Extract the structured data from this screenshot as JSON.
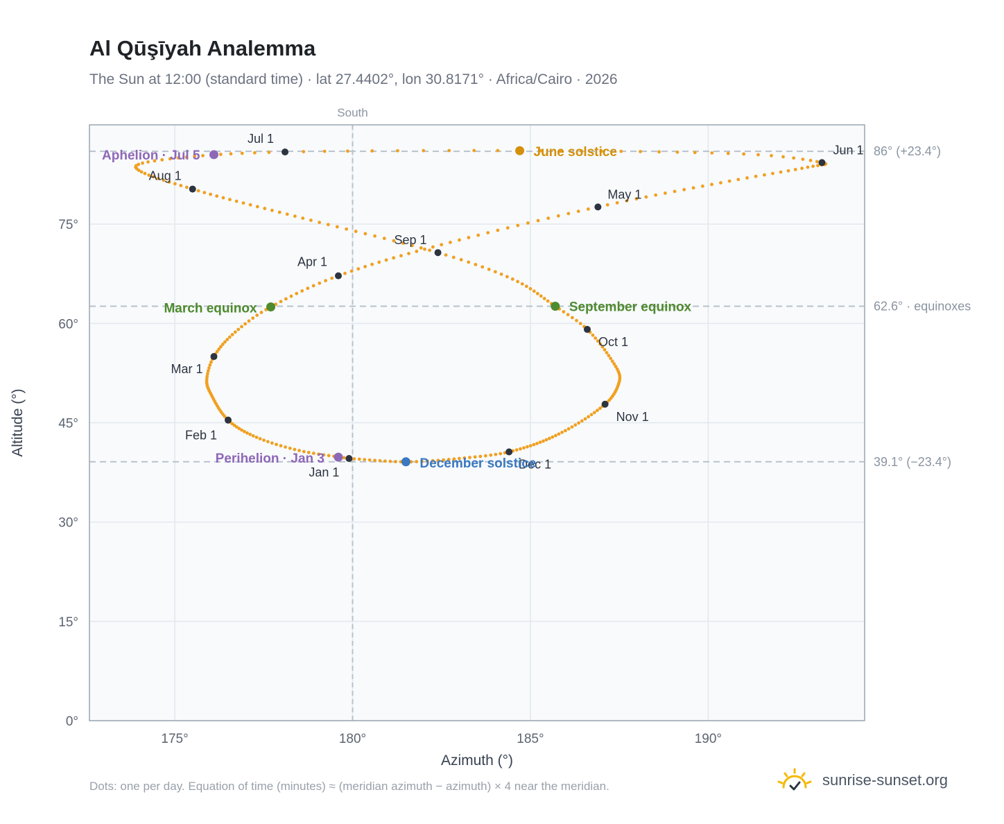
{
  "header": {
    "title": "Al Qūşīyah Analemma",
    "subtitle": "The Sun at 12:00 (standard time) · lat 27.4402°, lon 30.8171° · Africa/Cairo · 2026"
  },
  "footer": {
    "note": "Dots: one per day. Equation of time (minutes) ≈ (meridian azimuth − azimuth) × 4 near the meridian.",
    "brand": "sunrise-sunset.org"
  },
  "colors": {
    "path": "#f0a020",
    "month_marker": "#2d3440",
    "june_solstice": "#d4900a",
    "december_solstice": "#3a78c0",
    "equinox": "#4e8a2e",
    "apsis": "#8e68b8",
    "plot_bg": "#f8fafc",
    "grid": "#e3e8ee",
    "ref_line": "#b8c2cc"
  },
  "chart_data": {
    "type": "scatter",
    "xlabel": "Azimuth (°)",
    "ylabel": "Altitude (°)",
    "xlim": [
      172.6,
      194.4
    ],
    "ylim": [
      0,
      90
    ],
    "x_ticks": [
      175,
      180,
      185,
      190
    ],
    "x_tick_labels": [
      "175°",
      "180°",
      "185°",
      "190°"
    ],
    "y_ticks": [
      0,
      15,
      30,
      45,
      60,
      75
    ],
    "y_tick_labels": [
      "0°",
      "15°",
      "30°",
      "45°",
      "60°",
      "75°"
    ],
    "grid": true,
    "meridian": {
      "azimuth": 180,
      "label": "South"
    },
    "reference_lines": [
      {
        "altitude": 86.0,
        "label": "86° (+23.4°)"
      },
      {
        "altitude": 62.6,
        "label": "62.6° · equinoxes"
      },
      {
        "altitude": 39.1,
        "label": "39.1° (−23.4°)"
      }
    ],
    "month_markers": [
      {
        "label": "Jan 1",
        "az": 179.9,
        "alt": 39.6
      },
      {
        "label": "Feb 1",
        "az": 176.5,
        "alt": 45.4
      },
      {
        "label": "Mar 1",
        "az": 176.1,
        "alt": 55.0
      },
      {
        "label": "Apr 1",
        "az": 179.6,
        "alt": 67.2
      },
      {
        "label": "May 1",
        "az": 186.9,
        "alt": 77.6
      },
      {
        "label": "Jun 1",
        "az": 193.2,
        "alt": 84.3
      },
      {
        "label": "Jul 1",
        "az": 178.1,
        "alt": 85.9
      },
      {
        "label": "Aug 1",
        "az": 175.5,
        "alt": 80.3
      },
      {
        "label": "Sep 1",
        "az": 182.4,
        "alt": 70.7
      },
      {
        "label": "Oct 1",
        "az": 186.6,
        "alt": 59.1
      },
      {
        "label": "Nov 1",
        "az": 187.1,
        "alt": 47.8
      },
      {
        "label": "Dec 1",
        "az": 184.4,
        "alt": 40.6
      }
    ],
    "events": [
      {
        "label": "June solstice",
        "az": 184.7,
        "alt": 86.1,
        "color_key": "june_solstice"
      },
      {
        "label": "December solstice",
        "az": 181.5,
        "alt": 39.1,
        "color_key": "december_solstice"
      },
      {
        "label": "March equinox",
        "az": 177.7,
        "alt": 62.5,
        "color_key": "equinox"
      },
      {
        "label": "September equinox",
        "az": 185.7,
        "alt": 62.6,
        "color_key": "equinox"
      },
      {
        "label": "Perihelion · Jan 3",
        "az": 179.6,
        "alt": 39.8,
        "color_key": "apsis"
      },
      {
        "label": "Aphelion · Jul 5",
        "az": 176.1,
        "alt": 85.5,
        "color_key": "apsis"
      }
    ],
    "path_anchors": [
      {
        "doy": 1,
        "az": 179.9,
        "alt": 39.6
      },
      {
        "doy": 11,
        "az": 178.5,
        "alt": 40.8
      },
      {
        "doy": 21,
        "az": 177.3,
        "alt": 42.8
      },
      {
        "doy": 32,
        "az": 176.5,
        "alt": 45.4
      },
      {
        "doy": 45,
        "az": 176.0,
        "alt": 49.5
      },
      {
        "doy": 52,
        "az": 175.9,
        "alt": 51.6
      },
      {
        "doy": 60,
        "az": 176.1,
        "alt": 55.0
      },
      {
        "doy": 70,
        "az": 176.7,
        "alt": 58.7
      },
      {
        "doy": 79,
        "az": 177.7,
        "alt": 62.5
      },
      {
        "doy": 91,
        "az": 179.6,
        "alt": 67.2
      },
      {
        "doy": 105,
        "az": 182.5,
        "alt": 71.9
      },
      {
        "doy": 121,
        "az": 186.9,
        "alt": 77.6
      },
      {
        "doy": 135,
        "az": 190.6,
        "alt": 81.5
      },
      {
        "doy": 145,
        "az": 192.8,
        "alt": 83.6
      },
      {
        "doy": 152,
        "az": 193.2,
        "alt": 84.3
      },
      {
        "doy": 160,
        "az": 191.0,
        "alt": 85.6
      },
      {
        "doy": 172,
        "az": 184.7,
        "alt": 86.1
      },
      {
        "doy": 182,
        "az": 178.1,
        "alt": 85.9
      },
      {
        "doy": 192,
        "az": 175.1,
        "alt": 85.0
      },
      {
        "doy": 200,
        "az": 173.9,
        "alt": 83.6
      },
      {
        "doy": 213,
        "az": 175.5,
        "alt": 80.3
      },
      {
        "doy": 229,
        "az": 178.6,
        "alt": 75.9
      },
      {
        "doy": 244,
        "az": 182.4,
        "alt": 70.7
      },
      {
        "doy": 255,
        "az": 184.5,
        "alt": 66.7
      },
      {
        "doy": 266,
        "az": 185.7,
        "alt": 62.6
      },
      {
        "doy": 274,
        "az": 186.6,
        "alt": 59.1
      },
      {
        "doy": 287,
        "az": 187.4,
        "alt": 53.5
      },
      {
        "doy": 294,
        "az": 187.5,
        "alt": 51.2
      },
      {
        "doy": 305,
        "az": 187.1,
        "alt": 47.8
      },
      {
        "doy": 320,
        "az": 185.8,
        "alt": 43.3
      },
      {
        "doy": 335,
        "az": 184.4,
        "alt": 40.6
      },
      {
        "doy": 345,
        "az": 183.0,
        "alt": 39.6
      },
      {
        "doy": 355,
        "az": 181.5,
        "alt": 39.1
      },
      {
        "doy": 366,
        "az": 179.9,
        "alt": 39.6
      }
    ]
  }
}
